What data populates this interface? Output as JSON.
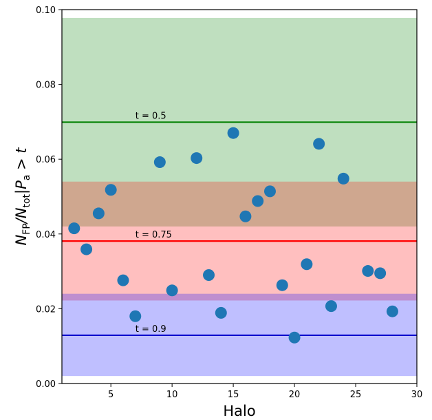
{
  "chart_data": {
    "type": "scatter",
    "xlabel": "Halo",
    "ylabel_main": "N",
    "ylabel_sub1": "FP",
    "ylabel_mid": "/N",
    "ylabel_sub2": "tot",
    "ylabel_mid2": "|P",
    "ylabel_sub3": "a",
    "ylabel_tail": " > t",
    "xlim": [
      1,
      30
    ],
    "ylim": [
      0.0,
      0.1
    ],
    "xticks": [
      5,
      10,
      15,
      20,
      25,
      30
    ],
    "yticks": [
      0.0,
      0.02,
      0.04,
      0.06,
      0.08,
      0.1
    ],
    "xtick_labels": [
      "5",
      "10",
      "15",
      "20",
      "25",
      "30"
    ],
    "ytick_labels": [
      "0.00",
      "0.02",
      "0.04",
      "0.06",
      "0.08",
      "0.10"
    ],
    "grid": false,
    "bands": [
      {
        "ymin": 0.042,
        "ymax": 0.0978,
        "color": "#008000",
        "opacity": 0.25
      },
      {
        "ymin": 0.0222,
        "ymax": 0.054,
        "color": "#ff0000",
        "opacity": 0.25
      },
      {
        "ymin": 0.002,
        "ymax": 0.024,
        "color": "#0000ff",
        "opacity": 0.25
      }
    ],
    "thresholds": [
      {
        "label": "t = 0.5",
        "y": 0.0699,
        "color": "#008000",
        "label_x": 7.0
      },
      {
        "label": "t = 0.75",
        "y": 0.0381,
        "color": "#ff0000",
        "label_x": 7.0
      },
      {
        "label": "t = 0.9",
        "y": 0.0129,
        "color": "#0000cd",
        "label_x": 7.0
      }
    ],
    "series": [
      {
        "x": [
          2,
          3,
          4,
          5,
          6,
          7,
          9,
          10,
          12,
          13,
          14,
          15,
          16,
          17,
          18,
          19,
          20,
          21,
          22,
          23,
          24,
          26,
          27,
          28
        ],
        "y": [
          0.0415,
          0.0359,
          0.0455,
          0.0518,
          0.0276,
          0.018,
          0.0592,
          0.0249,
          0.0603,
          0.029,
          0.0189,
          0.067,
          0.0447,
          0.0488,
          0.0514,
          0.0263,
          0.0123,
          0.0319,
          0.0641,
          0.0207,
          0.0548,
          0.0301,
          0.0295,
          0.0193
        ],
        "color": "#1f77b4"
      }
    ]
  }
}
